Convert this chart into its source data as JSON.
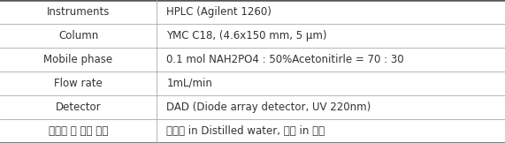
{
  "rows": [
    [
      "Instruments",
      "HPLC (Agilent 1260)"
    ],
    [
      "Column",
      "YMC C18, (4.6x150 mm, 5 μm)"
    ],
    [
      "Mobile phase",
      "0.1 mol NAH2PO4 : 50%Acetonitirle = 70 : 30"
    ],
    [
      "Flow rate",
      "1mL/min"
    ],
    [
      "Detector",
      "DAD (Diode array detector, UV 220nm)"
    ],
    [
      "표준액 및 검액 조제",
      "표준액 in Distilled water, 제품 in 원액"
    ]
  ],
  "col_split": 0.31,
  "background_color": "#ffffff",
  "border_color": "#555555",
  "line_color": "#aaaaaa",
  "text_color": "#333333",
  "font_size": 8.5
}
